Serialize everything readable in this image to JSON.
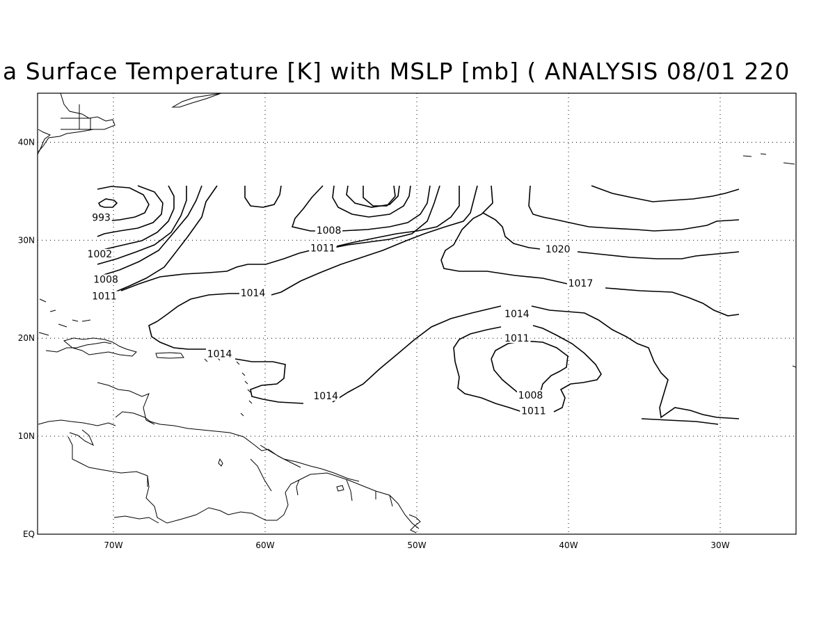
{
  "title": "a Surface Temperature [K] with MSLP [mb] ( ANALYSIS 08/01 220",
  "axes": {
    "lon_range": [
      -75,
      -25
    ],
    "lat_range": [
      0,
      45
    ],
    "x_ticks": [
      {
        "value": -70,
        "label": "70W"
      },
      {
        "value": -60,
        "label": "60W"
      },
      {
        "value": -50,
        "label": "50W"
      },
      {
        "value": -40,
        "label": "40W"
      },
      {
        "value": -30,
        "label": "30W"
      }
    ],
    "y_ticks": [
      {
        "value": 0,
        "label": "EQ"
      },
      {
        "value": 10,
        "label": "10N"
      },
      {
        "value": 20,
        "label": "20N"
      },
      {
        "value": 30,
        "label": "30N"
      },
      {
        "value": 40,
        "label": "40N"
      }
    ],
    "grid": "dotted"
  },
  "contour_labels": [
    {
      "text": "993",
      "lon": -70.8,
      "lat": 32.1
    },
    {
      "text": "1002",
      "lon": -70.9,
      "lat": 28.4
    },
    {
      "text": "1008",
      "lon": -70.5,
      "lat": 25.8
    },
    {
      "text": "1011",
      "lon": -70.6,
      "lat": 24.1
    },
    {
      "text": "1008",
      "lon": -55.8,
      "lat": 30.8
    },
    {
      "text": "1011",
      "lon": -56.2,
      "lat": 29.0
    },
    {
      "text": "1014",
      "lon": -60.8,
      "lat": 24.4
    },
    {
      "text": "1014",
      "lon": -63.0,
      "lat": 18.2
    },
    {
      "text": "1014",
      "lon": -56.0,
      "lat": 13.9
    },
    {
      "text": "1020",
      "lon": -40.7,
      "lat": 28.9
    },
    {
      "text": "1017",
      "lon": -39.2,
      "lat": 25.4
    },
    {
      "text": "1014",
      "lon": -43.4,
      "lat": 22.3
    },
    {
      "text": "1011",
      "lon": -43.4,
      "lat": 19.8
    },
    {
      "text": "1008",
      "lon": -42.5,
      "lat": 14.0
    },
    {
      "text": "1011",
      "lon": -42.3,
      "lat": 12.4
    }
  ]
}
